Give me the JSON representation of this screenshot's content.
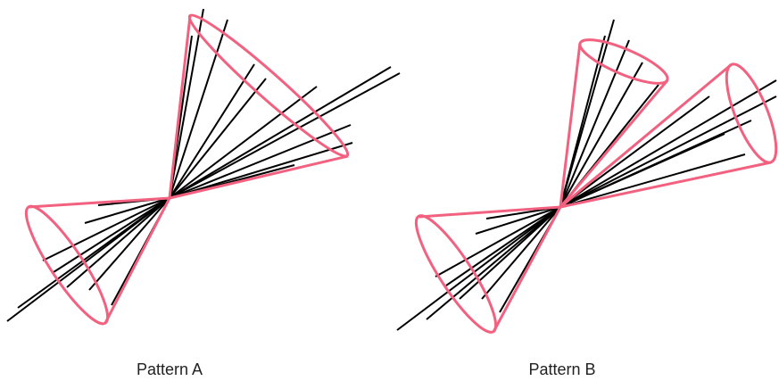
{
  "labels": [
    "Pattern A",
    "Pattern B"
  ]
}
